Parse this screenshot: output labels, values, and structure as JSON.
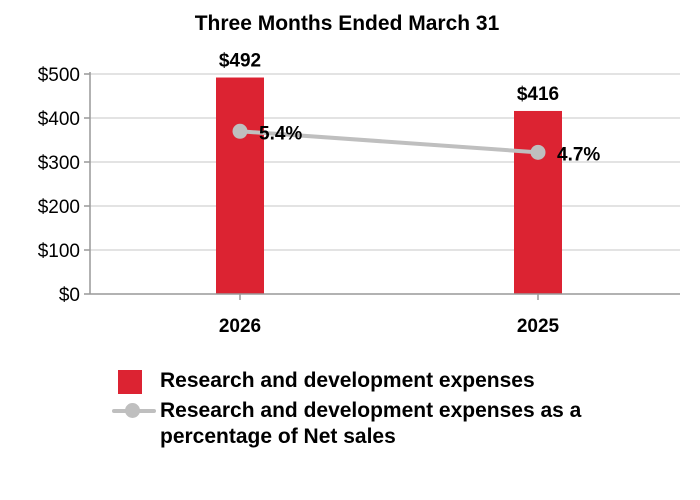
{
  "chart_data": {
    "type": "bar",
    "title": "Three Months Ended March 31",
    "categories": [
      "2026",
      "2025"
    ],
    "series": [
      {
        "name": "Research and development expenses",
        "type": "bar",
        "values": [
          492,
          416
        ],
        "labels": [
          "$492",
          "$416"
        ],
        "color": "#dc2332"
      },
      {
        "name": "Research and development expenses as a percentage of Net sales",
        "type": "line",
        "values": [
          5.4,
          4.7
        ],
        "labels": [
          "5.4%",
          "4.7%"
        ],
        "color": "#bfbfbf"
      }
    ],
    "y_ticks": [
      "$0",
      "$100",
      "$200",
      "$300",
      "$400",
      "$500"
    ],
    "y_tick_values": [
      0,
      100,
      200,
      300,
      400,
      500
    ],
    "ylim": [
      0,
      500
    ],
    "xlabel": "",
    "ylabel": "",
    "grid": true,
    "legend_position": "bottom"
  },
  "legend": {
    "bar_label": "Research and development expenses",
    "line_label": "Research and development expenses as a percentage of Net sales"
  }
}
